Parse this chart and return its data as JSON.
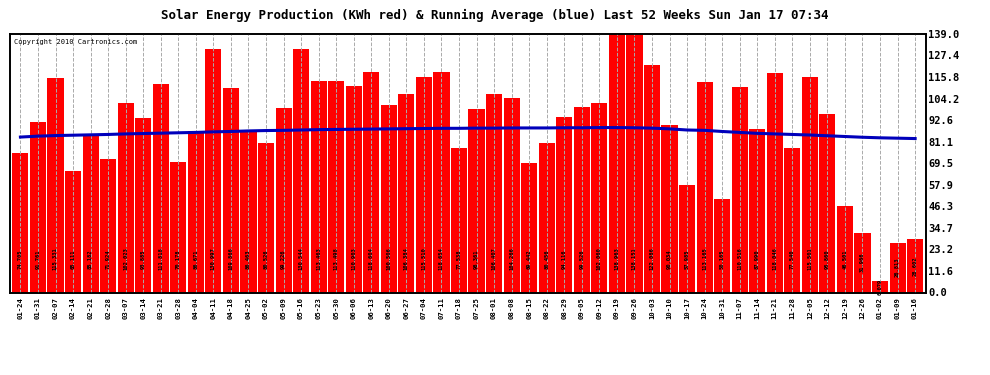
{
  "title": "Solar Energy Production (KWh red) & Running Average (blue) Last 52 Weeks Sun Jan 17 07:34",
  "copyright": "Copyright 2010 Cartronics.com",
  "bar_color": "#FF0000",
  "avg_line_color": "#0000BB",
  "background_color": "#FFFFFF",
  "plot_bg_color": "#FFFFFF",
  "grid_color": "#AAAAAA",
  "labels": [
    "01-24",
    "01-31",
    "02-07",
    "02-14",
    "02-21",
    "02-28",
    "03-07",
    "03-14",
    "03-21",
    "03-28",
    "04-04",
    "04-11",
    "04-18",
    "04-25",
    "05-02",
    "05-09",
    "05-16",
    "05-23",
    "05-30",
    "06-06",
    "06-13",
    "06-20",
    "06-27",
    "07-04",
    "07-11",
    "07-18",
    "07-25",
    "08-01",
    "08-08",
    "08-15",
    "08-22",
    "08-29",
    "09-05",
    "09-12",
    "09-19",
    "09-26",
    "10-03",
    "10-10",
    "10-17",
    "10-24",
    "10-31",
    "11-07",
    "11-14",
    "11-21",
    "11-28",
    "12-05",
    "12-12",
    "12-19",
    "12-26",
    "01-02",
    "01-09",
    "01-16"
  ],
  "values": [
    74.705,
    91.761,
    115.331,
    65.111,
    85.182,
    71.924,
    102.023,
    93.885,
    111.818,
    70.178,
    86.671,
    130.997,
    109.866,
    86.463,
    80.526,
    99.226,
    130.544,
    113.463,
    113.498,
    110.903,
    118.604,
    100.506,
    106.384,
    115.51,
    118.654,
    77.538,
    98.361,
    106.407,
    104.266,
    69.442,
    80.456,
    94.116,
    99.526,
    102.06,
    138.963,
    138.151,
    122.086,
    90.034,
    57.985,
    113.165,
    50.165,
    110.516,
    87.99,
    118.046,
    77.54,
    115.501,
    95.86,
    46.501,
    31.966,
    6.079,
    26.813,
    28.602
  ],
  "ylim": [
    0,
    139.0
  ],
  "yticks": [
    0.0,
    11.6,
    23.2,
    34.7,
    46.3,
    57.9,
    69.5,
    81.1,
    92.6,
    104.2,
    115.8,
    127.4,
    139.0
  ],
  "avg_values": [
    83.5,
    84.0,
    84.3,
    84.5,
    84.7,
    84.9,
    85.2,
    85.4,
    85.6,
    85.8,
    86.0,
    86.3,
    86.5,
    86.8,
    87.0,
    87.1,
    87.3,
    87.5,
    87.6,
    87.7,
    87.8,
    87.9,
    88.0,
    88.1,
    88.2,
    88.2,
    88.3,
    88.3,
    88.4,
    88.4,
    88.4,
    88.5,
    88.5,
    88.6,
    88.6,
    88.5,
    88.3,
    87.9,
    87.3,
    87.1,
    86.5,
    86.0,
    85.5,
    85.2,
    84.9,
    84.6,
    84.2,
    83.8,
    83.4,
    83.1,
    82.9,
    82.7
  ]
}
